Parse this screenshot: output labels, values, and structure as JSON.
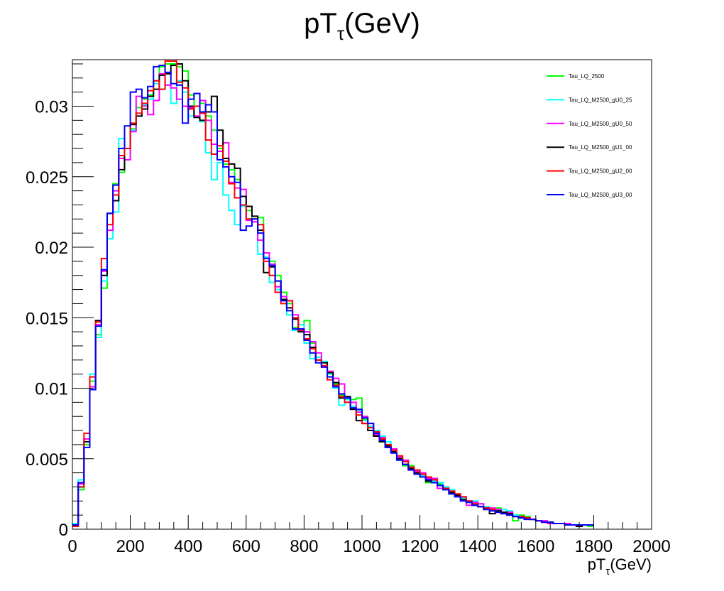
{
  "chart_data": {
    "type": "line",
    "title": {
      "main": "pT",
      "sub": "τ",
      "suffix": "(GeV)"
    },
    "xlabel": {
      "main": "pT",
      "sub": "τ",
      "suffix": "(GeV)"
    },
    "ylabel": "",
    "xlim": [
      0,
      2000
    ],
    "ylim": [
      0,
      0.0333
    ],
    "bin_width": 20,
    "bin_start": 0,
    "x_ticks": [
      0,
      200,
      400,
      600,
      800,
      1000,
      1200,
      1400,
      1600,
      1800,
      2000
    ],
    "x_tick_labels": [
      "0",
      "200",
      "400",
      "600",
      "800",
      "1000",
      "1200",
      "1400",
      "1600",
      "1800",
      "2000"
    ],
    "y_ticks": [
      0,
      0.005,
      0.01,
      0.015,
      0.02,
      0.025,
      0.03
    ],
    "y_tick_labels": [
      "0",
      "0.005",
      "0.01",
      "0.015",
      "0.02",
      "0.025",
      "0.03"
    ],
    "grid": false,
    "legend_position": "top-right",
    "series": [
      {
        "name": "Tau_LQ_2500",
        "color": "#00ff00",
        "values": [
          0.0003,
          0.0028,
          0.006,
          0.0105,
          0.0138,
          0.0171,
          0.0224,
          0.0245,
          0.0253,
          0.027,
          0.0284,
          0.0299,
          0.0305,
          0.0308,
          0.0318,
          0.0328,
          0.033,
          0.033,
          0.0328,
          0.0325,
          0.0308,
          0.03,
          0.0302,
          0.0293,
          0.0283,
          0.027,
          0.0259,
          0.0255,
          0.0248,
          0.0229,
          0.0226,
          0.022,
          0.0221,
          0.0193,
          0.019,
          0.018,
          0.0168,
          0.016,
          0.0143,
          0.0142,
          0.0148,
          0.0132,
          0.0122,
          0.0116,
          0.011,
          0.0103,
          0.0095,
          0.009,
          0.0092,
          0.0093,
          0.0078,
          0.0072,
          0.007,
          0.0065,
          0.006,
          0.0055,
          0.005,
          0.0045,
          0.0045,
          0.004,
          0.0038,
          0.0033,
          0.0035,
          0.0032,
          0.003,
          0.0025,
          0.0025,
          0.0022,
          0.002,
          0.0018,
          0.0018,
          0.0015,
          0.0013,
          0.0015,
          0.0012,
          0.001,
          0.0006,
          0.001,
          0.0009,
          0.0007,
          0.0006,
          0.0005,
          0.0005,
          0.0004,
          0.0004,
          0.0003,
          0.0003,
          0.0002,
          0.0003,
          0.0002
        ]
      },
      {
        "name": "Tau_LQ_M2500_gU0_25",
        "color": "#00ffff",
        "values": [
          0.0004,
          0.0035,
          0.0064,
          0.011,
          0.0136,
          0.0176,
          0.0206,
          0.0225,
          0.0277,
          0.0262,
          0.0283,
          0.0293,
          0.0301,
          0.0305,
          0.0316,
          0.0312,
          0.0315,
          0.0302,
          0.0318,
          0.031,
          0.0293,
          0.03,
          0.0289,
          0.0267,
          0.0248,
          0.026,
          0.0237,
          0.0226,
          0.0216,
          0.0229,
          0.022,
          0.0218,
          0.0195,
          0.0193,
          0.0175,
          0.017,
          0.0163,
          0.0152,
          0.0141,
          0.0145,
          0.0132,
          0.0121,
          0.0122,
          0.0119,
          0.011,
          0.01,
          0.0088,
          0.0092,
          0.0087,
          0.0084,
          0.0077,
          0.0073,
          0.007,
          0.0066,
          0.0062,
          0.0056,
          0.0051,
          0.0048,
          0.0044,
          0.0041,
          0.0038,
          0.0035,
          0.0034,
          0.0033,
          0.003,
          0.0028,
          0.0025,
          0.0022,
          0.002,
          0.002,
          0.0018,
          0.0016,
          0.0014,
          0.0013,
          0.0014,
          0.0013,
          0.001,
          0.0009,
          0.0008,
          0.0007,
          0.0006,
          0.0006,
          0.0005,
          0.0004,
          0.0004,
          0.0003,
          0.0003,
          0.0003,
          0.0003,
          0.0003
        ]
      },
      {
        "name": "Tau_LQ_M2500_gU0_50",
        "color": "#ff00ff",
        "values": [
          0.0003,
          0.0032,
          0.0064,
          0.0101,
          0.0145,
          0.0183,
          0.0212,
          0.024,
          0.0263,
          0.0262,
          0.0282,
          0.0307,
          0.03,
          0.0294,
          0.0304,
          0.0323,
          0.0315,
          0.0313,
          0.0305,
          0.03,
          0.0299,
          0.0293,
          0.0304,
          0.029,
          0.0273,
          0.0268,
          0.0274,
          0.0246,
          0.0242,
          0.0241,
          0.0219,
          0.0218,
          0.0205,
          0.0196,
          0.0188,
          0.0172,
          0.0165,
          0.0162,
          0.0152,
          0.0142,
          0.014,
          0.0133,
          0.0125,
          0.0115,
          0.0112,
          0.0107,
          0.0103,
          0.0093,
          0.009,
          0.0083,
          0.008,
          0.0075,
          0.0067,
          0.0065,
          0.0058,
          0.0057,
          0.0051,
          0.0049,
          0.0042,
          0.0041,
          0.004,
          0.0036,
          0.0036,
          0.0029,
          0.0029,
          0.0026,
          0.0025,
          0.0023,
          0.0017,
          0.0019,
          0.0018,
          0.0015,
          0.0015,
          0.0014,
          0.0011,
          0.0012,
          0.0009,
          0.0009,
          0.0008,
          0.0007,
          0.0006,
          0.0006,
          0.0004,
          0.0004,
          0.0004,
          0.0004,
          0.0003,
          0.0003,
          0.0003,
          0.0003
        ]
      },
      {
        "name": "Tau_LQ_M2500_gU1_00",
        "color": "#000000",
        "values": [
          0.0002,
          0.003,
          0.0062,
          0.0099,
          0.0148,
          0.018,
          0.0224,
          0.0233,
          0.0255,
          0.027,
          0.0287,
          0.0293,
          0.0298,
          0.0307,
          0.0312,
          0.0322,
          0.0323,
          0.0329,
          0.033,
          0.0318,
          0.03,
          0.0292,
          0.029,
          0.0296,
          0.0307,
          0.0283,
          0.0263,
          0.0259,
          0.0256,
          0.0236,
          0.0229,
          0.0222,
          0.0212,
          0.0182,
          0.0186,
          0.0176,
          0.0163,
          0.0157,
          0.0149,
          0.014,
          0.0138,
          0.0129,
          0.012,
          0.0118,
          0.0111,
          0.0104,
          0.0093,
          0.0094,
          0.0085,
          0.0077,
          0.0075,
          0.007,
          0.0066,
          0.0062,
          0.0059,
          0.0055,
          0.005,
          0.0046,
          0.0043,
          0.004,
          0.0037,
          0.0034,
          0.0033,
          0.0031,
          0.0028,
          0.0026,
          0.0024,
          0.0021,
          0.0019,
          0.0017,
          0.0016,
          0.0015,
          0.0011,
          0.0013,
          0.0012,
          0.0011,
          0.0009,
          0.0008,
          0.0008,
          0.0007,
          0.0006,
          0.0005,
          0.0005,
          0.0004,
          0.0004,
          0.0003,
          0.0003,
          0.0002,
          0.0003,
          0.0003
        ]
      },
      {
        "name": "Tau_LQ_M2500_gU2_00",
        "color": "#ff0000",
        "values": [
          0.0002,
          0.003,
          0.0068,
          0.0108,
          0.0147,
          0.0192,
          0.0216,
          0.0237,
          0.0265,
          0.027,
          0.0288,
          0.0295,
          0.0302,
          0.0311,
          0.0318,
          0.0312,
          0.0332,
          0.0332,
          0.0317,
          0.0313,
          0.0298,
          0.03,
          0.0295,
          0.0276,
          0.0266,
          0.0272,
          0.0261,
          0.0245,
          0.0235,
          0.023,
          0.022,
          0.022,
          0.0216,
          0.019,
          0.018,
          0.0168,
          0.016,
          0.0162,
          0.015,
          0.0141,
          0.0135,
          0.0128,
          0.012,
          0.0116,
          0.0106,
          0.0102,
          0.0094,
          0.009,
          0.0086,
          0.0081,
          0.0075,
          0.0072,
          0.0069,
          0.0064,
          0.006,
          0.0056,
          0.0052,
          0.0048,
          0.0044,
          0.0042,
          0.0039,
          0.0037,
          0.0035,
          0.0031,
          0.0029,
          0.0027,
          0.0025,
          0.0023,
          0.002,
          0.0018,
          0.0016,
          0.0015,
          0.0014,
          0.0012,
          0.0011,
          0.001,
          0.0009,
          0.0009,
          0.0008,
          0.0007,
          0.0006,
          0.0005,
          0.0005,
          0.0004,
          0.0004,
          0.0003,
          0.0003,
          0.0003,
          0.0003,
          0.0003
        ]
      },
      {
        "name": "Tau_LQ_M2500_gU3_00",
        "color": "#0000ff",
        "values": [
          0.0003,
          0.0033,
          0.0058,
          0.0099,
          0.0144,
          0.0184,
          0.0224,
          0.0244,
          0.027,
          0.0286,
          0.031,
          0.0312,
          0.0306,
          0.0314,
          0.0328,
          0.0329,
          0.0324,
          0.0316,
          0.0315,
          0.0288,
          0.0305,
          0.0309,
          0.0296,
          0.0301,
          0.0296,
          0.0262,
          0.0257,
          0.025,
          0.0246,
          0.0212,
          0.0215,
          0.022,
          0.021,
          0.0192,
          0.0187,
          0.0176,
          0.0162,
          0.0155,
          0.0142,
          0.0142,
          0.0134,
          0.0125,
          0.0118,
          0.0115,
          0.0108,
          0.0101,
          0.0096,
          0.0093,
          0.0086,
          0.0085,
          0.0079,
          0.0075,
          0.0068,
          0.0063,
          0.0058,
          0.0054,
          0.0049,
          0.0046,
          0.0042,
          0.0039,
          0.0037,
          0.0035,
          0.0033,
          0.0031,
          0.0028,
          0.0025,
          0.0023,
          0.002,
          0.0019,
          0.0017,
          0.0016,
          0.0014,
          0.0013,
          0.0012,
          0.0011,
          0.001,
          0.0009,
          0.0008,
          0.0007,
          0.0007,
          0.0006,
          0.0005,
          0.0005,
          0.0004,
          0.0004,
          0.0003,
          0.0003,
          0.0003,
          0.0003,
          0.0003
        ]
      }
    ]
  }
}
